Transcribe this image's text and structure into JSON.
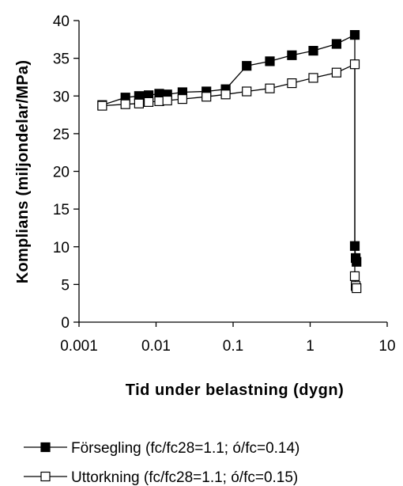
{
  "chart_data": {
    "type": "line",
    "xscale": "log",
    "xlim": [
      0.001,
      10
    ],
    "ylim": [
      0,
      40
    ],
    "xlabel": "Tid under belastning (dygn)",
    "ylabel": "Komplians (miljondelar/MPa)",
    "x_ticks": [
      "0.001",
      "0.01",
      "0.1",
      "1",
      "10"
    ],
    "y_ticks": [
      "0",
      "5",
      "10",
      "15",
      "20",
      "25",
      "30",
      "35",
      "40"
    ],
    "grid": false,
    "legend_position": "bottom",
    "series": [
      {
        "name": "Försegling (fc/fc28=1.1; ó/fc=0.14)",
        "marker": "filled-square",
        "color": "#000000",
        "x": [
          0.002,
          0.004,
          0.006,
          0.008,
          0.011,
          0.014,
          0.022,
          0.045,
          0.08,
          0.15,
          0.3,
          0.58,
          1.1,
          2.2,
          3.8,
          3.8,
          3.9,
          4.0
        ],
        "y": [
          28.8,
          29.8,
          30.0,
          30.1,
          30.3,
          30.2,
          30.5,
          30.6,
          30.9,
          34.0,
          34.6,
          35.4,
          36.0,
          36.9,
          38.1,
          10.1,
          8.5,
          8.0
        ]
      },
      {
        "name": "Uttorkning (fc/fc28=1.1; ó/fc=0.15)",
        "marker": "open-square",
        "color": "#000000",
        "x": [
          0.002,
          0.004,
          0.006,
          0.008,
          0.011,
          0.014,
          0.022,
          0.045,
          0.08,
          0.15,
          0.3,
          0.58,
          1.1,
          2.2,
          3.8,
          3.8,
          3.9,
          4.0
        ],
        "y": [
          28.7,
          28.9,
          29.0,
          29.2,
          29.3,
          29.4,
          29.6,
          29.9,
          30.2,
          30.6,
          31.0,
          31.7,
          32.4,
          33.1,
          34.2,
          6.1,
          4.8,
          4.5
        ]
      }
    ]
  }
}
